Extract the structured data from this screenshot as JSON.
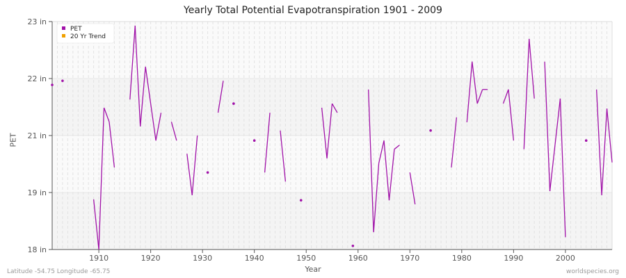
{
  "chart_data": {
    "type": "line",
    "title": "Yearly Total Potential Evapotranspiration 1901 - 2009",
    "xlabel": "Year",
    "ylabel": "PET",
    "xlim": [
      1901,
      2009
    ],
    "ylim": [
      18,
      23
    ],
    "yticks": [
      {
        "value": 18,
        "label": "18 in"
      },
      {
        "value": 19.25,
        "label": "19 in"
      },
      {
        "value": 20.5,
        "label": "21 in"
      },
      {
        "value": 21.75,
        "label": "22 in"
      },
      {
        "value": 23,
        "label": "23 in"
      }
    ],
    "xticks": [
      1910,
      1920,
      1930,
      1940,
      1950,
      1960,
      1970,
      1980,
      1990,
      2000
    ],
    "grid": true,
    "legend_position": "top-left",
    "series": [
      {
        "name": "PET",
        "color": "#a010a8",
        "start_year": 1901,
        "values": [
          21.61,
          null,
          21.7,
          null,
          null,
          null,
          null,
          null,
          19.1,
          18.0,
          21.11,
          20.8,
          19.8,
          null,
          null,
          21.29,
          22.91,
          20.7,
          22.01,
          21.2,
          20.39,
          21.0,
          null,
          20.8,
          20.39,
          null,
          20.1,
          19.19,
          20.5,
          null,
          19.69,
          null,
          21.0,
          21.7,
          null,
          21.2,
          null,
          null,
          null,
          20.39,
          null,
          19.69,
          21.0,
          null,
          20.61,
          19.49,
          null,
          null,
          19.08,
          null,
          null,
          null,
          21.11,
          20.0,
          21.2,
          21.0,
          null,
          null,
          18.08,
          null,
          null,
          21.51,
          18.38,
          19.89,
          20.39,
          19.08,
          20.2,
          20.29,
          null,
          19.69,
          18.99,
          null,
          null,
          20.61,
          null,
          null,
          null,
          19.8,
          20.9,
          null,
          20.79,
          22.12,
          21.2,
          21.51,
          21.51,
          null,
          null,
          21.2,
          21.51,
          20.39,
          null,
          20.2,
          22.62,
          21.31,
          null,
          22.12,
          19.28,
          20.3,
          21.31,
          18.27,
          null,
          null,
          null,
          20.39,
          null,
          21.51,
          19.19,
          21.09,
          19.91
        ]
      },
      {
        "name": "20 Yr Trend",
        "color": "#f0a000",
        "values": []
      }
    ]
  },
  "footer": {
    "location": "Latitude -54.75 Longitude -65.75",
    "source": "worldspecies.org"
  }
}
